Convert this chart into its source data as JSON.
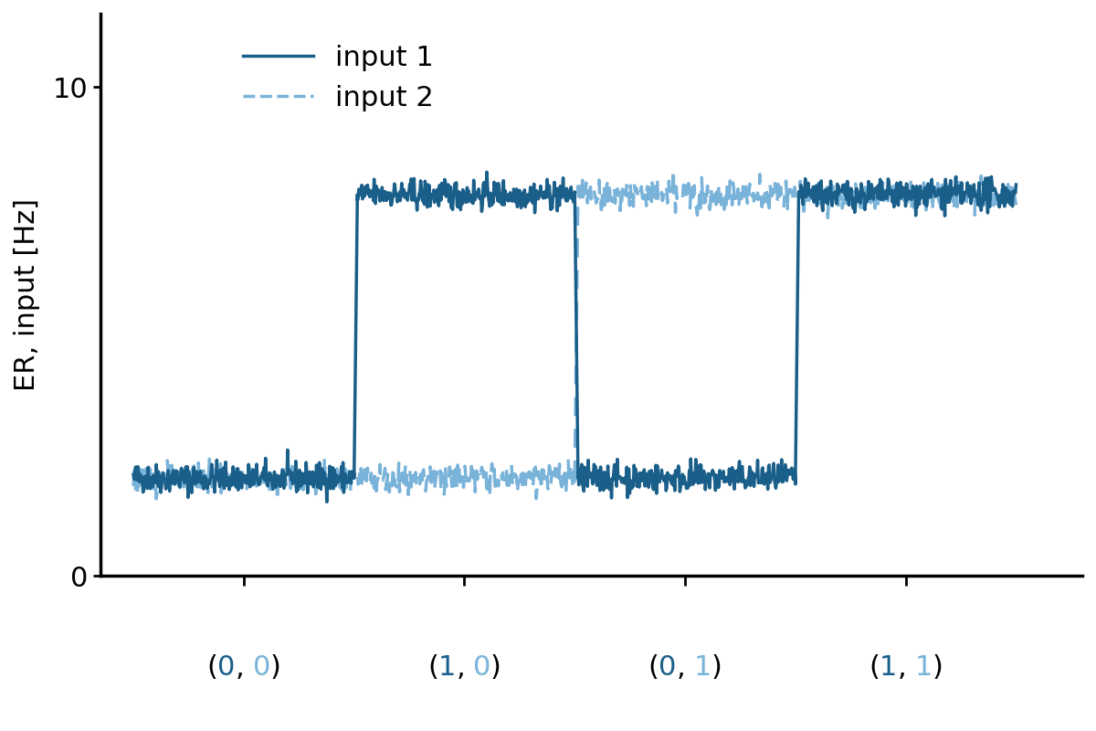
{
  "title": "",
  "ylabel": "ER, input [Hz]",
  "xlabel": "",
  "ylim": [
    0,
    11.5
  ],
  "yticks": [
    0,
    10
  ],
  "background_color": "#ffffff",
  "dark_blue": "#1a5f8a",
  "light_blue": "#7ab3d9",
  "low_val": 2.0,
  "high_val": 7.8,
  "noise_amp": 0.15,
  "xlim": [
    -0.15,
    4.3
  ],
  "xtick_positions": [
    0.5,
    1.5,
    2.5,
    3.5
  ],
  "label_configs": [
    [
      0.5,
      [
        [
          "(",
          "black"
        ],
        [
          "0",
          "#1a5f8a"
        ],
        [
          ", ",
          "black"
        ],
        [
          "0",
          "#7ab3d9"
        ],
        [
          ")",
          "black"
        ]
      ]
    ],
    [
      1.5,
      [
        [
          "(",
          "black"
        ],
        [
          "1",
          "#1a5f8a"
        ],
        [
          ", ",
          "black"
        ],
        [
          "0",
          "#7ab3d9"
        ],
        [
          ")",
          "black"
        ]
      ]
    ],
    [
      2.5,
      [
        [
          "(",
          "black"
        ],
        [
          "0",
          "#1a5f8a"
        ],
        [
          ", ",
          "black"
        ],
        [
          "1",
          "#7ab3d9"
        ],
        [
          ")",
          "black"
        ]
      ]
    ],
    [
      3.5,
      [
        [
          "(",
          "black"
        ],
        [
          "1",
          "#1a5f8a"
        ],
        [
          ", ",
          "black"
        ],
        [
          "1",
          "#7ab3d9"
        ],
        [
          ")",
          "black"
        ]
      ]
    ]
  ],
  "fontsize_tick": 22,
  "fontsize_ylabel": 22,
  "fontsize_legend": 22,
  "linewidth": 2.5,
  "spine_linewidth": 2.5
}
